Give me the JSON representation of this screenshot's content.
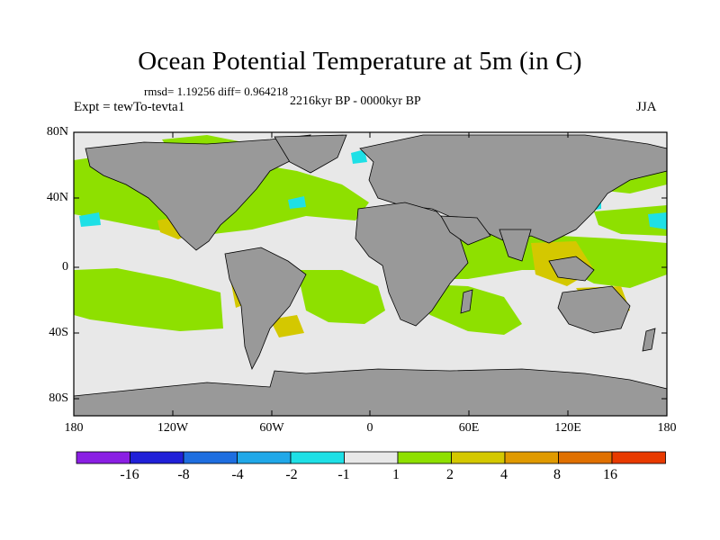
{
  "title": "Ocean Potential Temperature at 5m (in C)",
  "stats": "rmsd= 1.19256 diff= 0.964218",
  "experiment": "Expt = tewTo-tevta1",
  "period": "2216kyr BP - 0000kyr BP",
  "season": "JJA",
  "map": {
    "lat_ticks": [
      "80N",
      "40N",
      "0",
      "40S",
      "80S"
    ],
    "lon_ticks": [
      "180",
      "120W",
      "60W",
      "0",
      "60E",
      "120E",
      "180"
    ],
    "land_color": "#999999",
    "ocean_background_color": "#e8e8e8"
  },
  "colorbar": {
    "colors": [
      "#8a1fe3",
      "#2020d8",
      "#1e6ee0",
      "#20a8e8",
      "#1ee0e6",
      "#e8e8e8",
      "#8ee000",
      "#d4c800",
      "#e09a00",
      "#e07000",
      "#e83a00"
    ],
    "labels": [
      "-16",
      "-8",
      "-4",
      "-2",
      "-1",
      "1",
      "2",
      "4",
      "8",
      "16"
    ]
  }
}
